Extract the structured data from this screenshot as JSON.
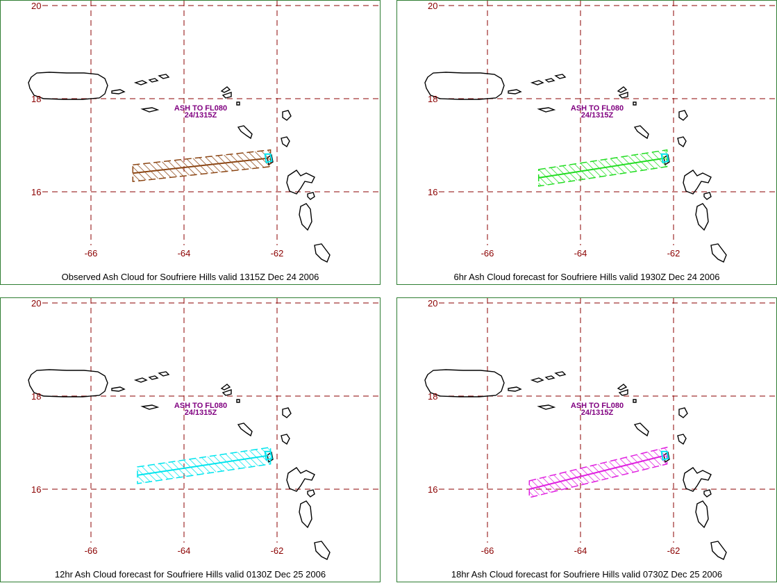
{
  "axes": {
    "lat_labels": [
      "20",
      "18",
      "16"
    ],
    "lon_labels": [
      "-66",
      "-64",
      "-62"
    ],
    "grid_color": "#8b0000",
    "label_color": "#8b0000"
  },
  "annotation": {
    "line1": "ASH TO FL080",
    "line2": "24/1315Z",
    "color": "#800080"
  },
  "panels": [
    {
      "caption": "Observed Ash Cloud for Soufriere  Hills valid 1315Z Dec 24 2006",
      "color": "#8b4513",
      "axis_length_deg": 2.9,
      "lat_start": 16.4
    },
    {
      "caption": "6hr Ash Cloud forecast for Soufriere  Hills valid 1930Z Dec 24 2006",
      "color": "#22dd22",
      "axis_length_deg": 2.7,
      "lat_start": 16.3
    },
    {
      "caption": "12hr Ash Cloud forecast for Soufriere  Hills valid 0130Z Dec 25 2006",
      "color": "#00e5ee",
      "axis_length_deg": 2.8,
      "lat_start": 16.3
    },
    {
      "caption": "18hr Ash Cloud forecast for Soufriere  Hills valid 0730Z Dec 25 2006",
      "color": "#e020e0",
      "axis_length_deg": 2.9,
      "lat_start": 16.0
    }
  ]
}
